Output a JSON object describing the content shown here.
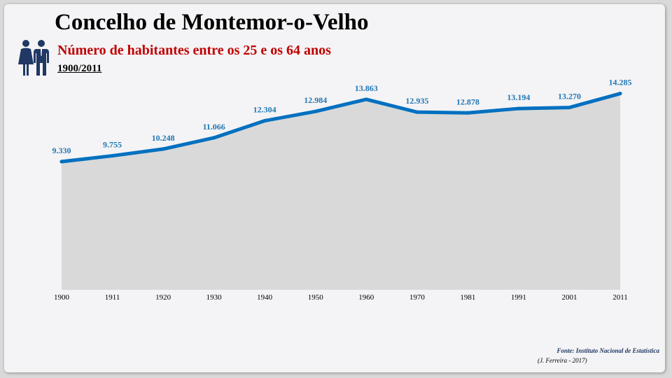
{
  "title": "Concelho de Montemor-o-Velho",
  "subtitle": "Número de habitantes entre os 25 e os 64 anos",
  "period": "1900/2011",
  "icon": "couple-icon",
  "source": "Fonte: Instituto Nacional de Estatística",
  "credit": "(J. Ferreira - 2017)",
  "colors": {
    "line": "#0070c0",
    "area": "#d9d9d9",
    "label": "#1f77b4",
    "subtitle": "#c00000"
  },
  "chart_data": {
    "type": "area",
    "categories": [
      "1900",
      "1911",
      "1920",
      "1930",
      "1940",
      "1950",
      "1960",
      "1970",
      "1981",
      "1991",
      "2001",
      "2011"
    ],
    "values": [
      9330,
      9755,
      10248,
      11066,
      12304,
      12984,
      13863,
      12935,
      12878,
      13194,
      13270,
      14285
    ],
    "value_labels": [
      "9.330",
      "9.755",
      "10.248",
      "11.066",
      "12.304",
      "12.984",
      "13.863",
      "12.935",
      "12.878",
      "13.194",
      "13.270",
      "14.285"
    ],
    "ylim": [
      0,
      16000
    ],
    "grid": false,
    "legend": "none"
  }
}
